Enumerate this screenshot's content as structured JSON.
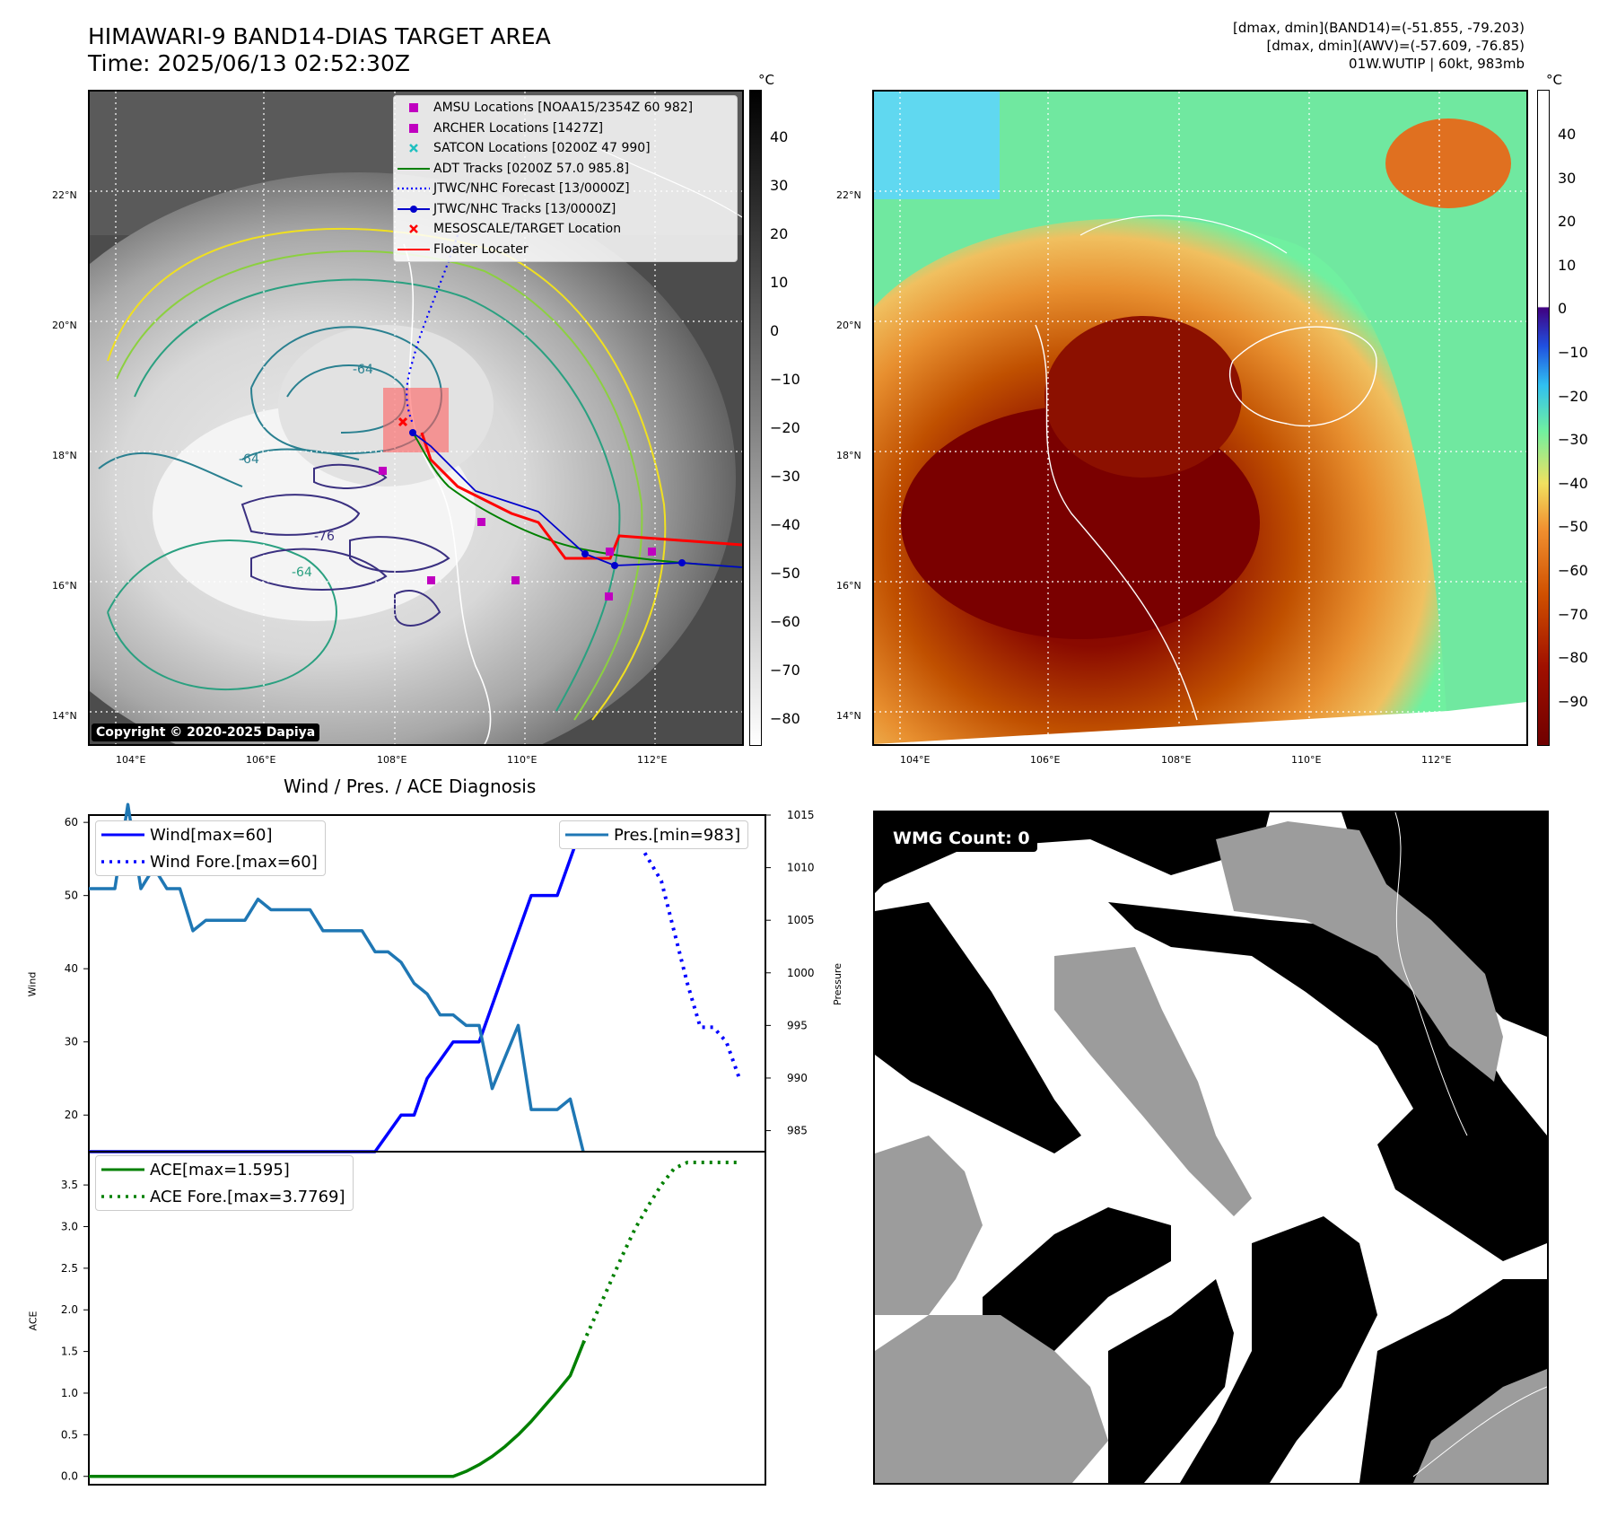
{
  "map_title": "HIMAWARI-9 BAND14-DIAS TARGET AREA",
  "map_time": "Time: 2025/06/13 02:52:30Z",
  "info_lines": [
    "[dmax, dmin](BAND14)=(-51.855, -79.203)",
    "[dmax, dmin](AWV)=(-57.609, -76.85)",
    "01W.WUTIP | 60kt, 983mb"
  ],
  "unit_c": "°C",
  "lat_labels": [
    "22°N",
    "20°N",
    "18°N",
    "16°N",
    "14°N"
  ],
  "lon_labels": [
    "104°E",
    "106°E",
    "108°E",
    "110°E",
    "112°E"
  ],
  "copyright": "Copyright © 2020-2025 Dapiya",
  "legend_items": [
    {
      "label": "AMSU Locations [NOAA15/2354Z 60 982]",
      "icon": "square-marker",
      "color": "#c000c0"
    },
    {
      "label": "ARCHER Locations [1427Z]",
      "icon": "square-marker",
      "color": "#c000c0"
    },
    {
      "label": "SATCON Locations [0200Z 47 990]",
      "icon": "x-marker",
      "color": "#20c0c0"
    },
    {
      "label": "ADT Tracks [0200Z 57.0 985.8]",
      "icon": "solid-line",
      "color": "#008000"
    },
    {
      "label": "JTWC/NHC Forecast [13/0000Z]",
      "icon": "dotted-line",
      "color": "#0000ff"
    },
    {
      "label": "JTWC/NHC Tracks [13/0000Z]",
      "icon": "dot-line",
      "color": "#0000cc"
    },
    {
      "label": "MESOSCALE/TARGET Location",
      "icon": "x-marker",
      "color": "#ff0000"
    },
    {
      "label": "Floater Locater",
      "icon": "solid-line",
      "color": "#ff0000"
    }
  ],
  "contour_labels": [
    "-64",
    "-64",
    "-64",
    "-76",
    "-76",
    "-64",
    "-64",
    "-6"
  ],
  "left_colorbar_ticks": [
    "40",
    "30",
    "20",
    "10",
    "0",
    "−10",
    "−20",
    "−30",
    "−40",
    "−50",
    "−60",
    "−70",
    "−80"
  ],
  "right_colorbar_ticks": [
    "40",
    "30",
    "20",
    "10",
    "0",
    "−10",
    "−20",
    "−30",
    "−40",
    "−50",
    "−60",
    "−70",
    "−80",
    "−90"
  ],
  "wmg_label": "WMG Count: 0",
  "chart_data": [
    {
      "type": "line",
      "title": "Wind / Pres. / ACE Diagnosis",
      "ylabel": "Wind",
      "ylabel_right": "Pressure",
      "ylim": [
        15,
        61
      ],
      "ylim_right": [
        983,
        1015
      ],
      "yticks": [
        "60",
        "50",
        "40",
        "30",
        "20"
      ],
      "yticks_right": [
        "1015",
        "1010",
        "1005",
        "1000",
        "995",
        "990",
        "985"
      ],
      "series": [
        {
          "name": "Wind[max=60]",
          "axis": "left",
          "style": "solid",
          "color": "#0000ff",
          "x": [
            0,
            22,
            24,
            25,
            26,
            28,
            29,
            30,
            31,
            32,
            33,
            34,
            35,
            36,
            37,
            38,
            39,
            40
          ],
          "y": [
            15,
            15,
            20,
            20,
            25,
            30,
            30,
            30,
            35,
            40,
            45,
            50,
            50,
            50,
            55,
            60,
            60,
            60
          ]
        },
        {
          "name": "Wind Fore.[max=60]",
          "axis": "left",
          "style": "dotted",
          "color": "#0000ff",
          "x": [
            40,
            42,
            43,
            44,
            45,
            46,
            47,
            48,
            49,
            50
          ],
          "y": [
            60,
            58,
            55,
            52,
            45,
            38,
            32,
            32,
            30,
            25
          ]
        },
        {
          "name": "Pres.[min=983]",
          "axis": "right",
          "style": "solid",
          "color": "#1f77b4",
          "x": [
            0,
            2,
            3,
            4,
            5,
            6,
            7,
            8,
            9,
            10,
            11,
            12,
            13,
            14,
            15,
            16,
            17,
            18,
            19,
            20,
            21,
            22,
            23,
            24,
            25,
            26,
            27,
            28,
            29,
            30,
            31,
            32,
            33,
            34,
            35,
            36,
            37,
            38
          ],
          "y": [
            1008,
            1008,
            1016,
            1008,
            1010,
            1008,
            1008,
            1004,
            1005,
            1005,
            1005,
            1005,
            1007,
            1006,
            1006,
            1006,
            1006,
            1004,
            1004,
            1004,
            1004,
            1002,
            1002,
            1001,
            999,
            998,
            996,
            996,
            995,
            995,
            989,
            992,
            995,
            987,
            987,
            987,
            988,
            983
          ]
        }
      ]
    },
    {
      "type": "line",
      "ylabel": "ACE",
      "ylim": [
        -0.1,
        3.9
      ],
      "yticks": [
        "3.5",
        "3.0",
        "2.5",
        "2.0",
        "1.5",
        "1.0",
        "0.5",
        "0.0"
      ],
      "series": [
        {
          "name": "ACE[max=1.595]",
          "style": "solid",
          "color": "#008000",
          "x": [
            0,
            28,
            29,
            30,
            31,
            32,
            33,
            34,
            35,
            36,
            37,
            38
          ],
          "y": [
            0,
            0,
            0.06,
            0.14,
            0.24,
            0.36,
            0.5,
            0.66,
            0.84,
            1.02,
            1.21,
            1.6
          ]
        },
        {
          "name": "ACE Fore.[max=3.7769]",
          "style": "dotted",
          "color": "#008000",
          "x": [
            38,
            39,
            40,
            41,
            42,
            43,
            44,
            45,
            46,
            47,
            48,
            49,
            50
          ],
          "y": [
            1.6,
            1.95,
            2.3,
            2.65,
            2.98,
            3.25,
            3.5,
            3.7,
            3.77,
            3.77,
            3.77,
            3.77,
            3.77
          ]
        }
      ]
    }
  ]
}
